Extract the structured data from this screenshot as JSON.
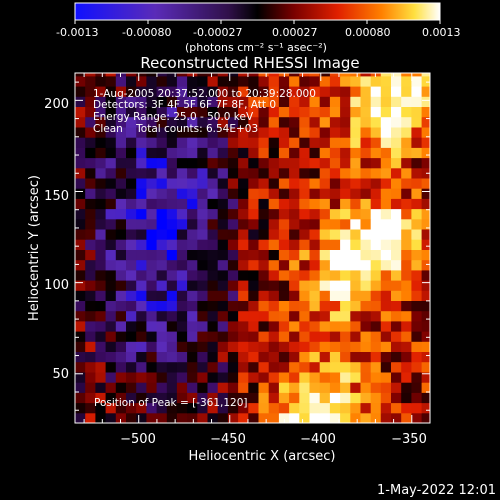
{
  "colorbar": {
    "ticks": [
      "-0.0013",
      "-0.00080",
      "-0.00027",
      "0.00027",
      "0.00080",
      "0.0013"
    ],
    "units": "(photons cm⁻² s⁻¹ asec⁻²)",
    "range": [
      -0.0013,
      0.0013
    ],
    "colormap": [
      "#0000ff",
      "#5a2bb8",
      "#3a0a60",
      "#000000",
      "#7a0000",
      "#e02000",
      "#ff8000",
      "#ffe040",
      "#ffffff"
    ]
  },
  "chart_data": {
    "type": "heatmap",
    "title": "Reconstructed RHESSI Image",
    "xlabel": "Heliocentric X (arcsec)",
    "ylabel": "Heliocentric Y (arcsec)",
    "xlim": [
      -535,
      -340
    ],
    "ylim": [
      23,
      215
    ],
    "xticks": [
      -500,
      -450,
      -400,
      -350
    ],
    "xtick_labels": [
      "−500",
      "−450",
      "−400",
      "−350"
    ],
    "yticks": [
      50,
      100,
      150,
      200
    ],
    "ytick_labels": [
      "50",
      "100",
      "150",
      "200"
    ],
    "annotations": [
      "1-Aug-2005 20:37:52.000 to 20:39:28.000",
      "Detectors: 3F 4F 5F 6F 7F 8F, Att 0",
      "Energy Range: 25.0 - 50.0 keV",
      "Clean    Total counts: 6.54E+03"
    ],
    "peak_label": "Position of Peak = [-361,120]",
    "peak_position": [
      -361,
      120
    ],
    "total_counts": "6.54E+03",
    "energy_range_kev": [
      25.0,
      50.0
    ],
    "grid": false
  },
  "footer": {
    "date": "1-May-2022 12:01"
  }
}
